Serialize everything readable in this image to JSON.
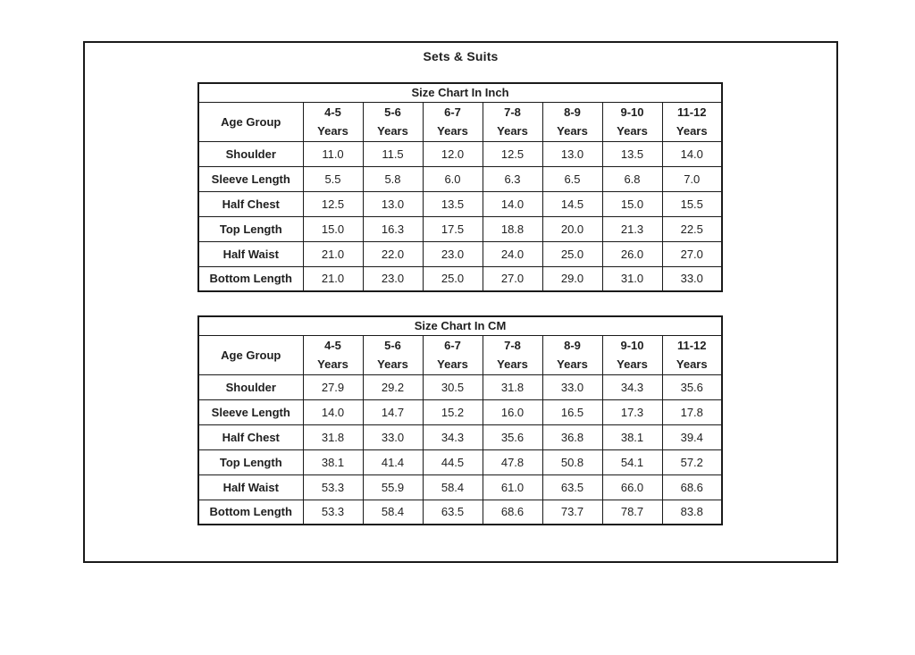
{
  "page": {
    "title": "Sets & Suits"
  },
  "colors": {
    "background": "#ffffff",
    "border": "#1a1a1a",
    "text": "#1f1f1f"
  },
  "tables": [
    {
      "title": "Size Chart In Inch",
      "corner_label": "Age Group",
      "columns": [
        "4-5\nYears",
        "5-6\nYears",
        "6-7\nYears",
        "7-8\nYears",
        "8-9\nYears",
        "9-10\nYears",
        "11-12\nYears"
      ],
      "rows": [
        {
          "label": "Shoulder",
          "values": [
            "11.0",
            "11.5",
            "12.0",
            "12.5",
            "13.0",
            "13.5",
            "14.0"
          ]
        },
        {
          "label": "Sleeve Length",
          "values": [
            "5.5",
            "5.8",
            "6.0",
            "6.3",
            "6.5",
            "6.8",
            "7.0"
          ]
        },
        {
          "label": "Half Chest",
          "values": [
            "12.5",
            "13.0",
            "13.5",
            "14.0",
            "14.5",
            "15.0",
            "15.5"
          ]
        },
        {
          "label": "Top Length",
          "values": [
            "15.0",
            "16.3",
            "17.5",
            "18.8",
            "20.0",
            "21.3",
            "22.5"
          ]
        },
        {
          "label": "Half Waist",
          "values": [
            "21.0",
            "22.0",
            "23.0",
            "24.0",
            "25.0",
            "26.0",
            "27.0"
          ]
        },
        {
          "label": "Bottom Length",
          "values": [
            "21.0",
            "23.0",
            "25.0",
            "27.0",
            "29.0",
            "31.0",
            "33.0"
          ]
        }
      ]
    },
    {
      "title": "Size Chart In CM",
      "corner_label": "Age Group",
      "columns": [
        "4-5\nYears",
        "5-6\nYears",
        "6-7\nYears",
        "7-8\nYears",
        "8-9\nYears",
        "9-10\nYears",
        "11-12\nYears"
      ],
      "rows": [
        {
          "label": "Shoulder",
          "values": [
            "27.9",
            "29.2",
            "30.5",
            "31.8",
            "33.0",
            "34.3",
            "35.6"
          ]
        },
        {
          "label": "Sleeve Length",
          "values": [
            "14.0",
            "14.7",
            "15.2",
            "16.0",
            "16.5",
            "17.3",
            "17.8"
          ]
        },
        {
          "label": "Half Chest",
          "values": [
            "31.8",
            "33.0",
            "34.3",
            "35.6",
            "36.8",
            "38.1",
            "39.4"
          ]
        },
        {
          "label": "Top Length",
          "values": [
            "38.1",
            "41.4",
            "44.5",
            "47.8",
            "50.8",
            "54.1",
            "57.2"
          ]
        },
        {
          "label": "Half Waist",
          "values": [
            "53.3",
            "55.9",
            "58.4",
            "61.0",
            "63.5",
            "66.0",
            "68.6"
          ]
        },
        {
          "label": "Bottom Length",
          "values": [
            "53.3",
            "58.4",
            "63.5",
            "68.6",
            "73.7",
            "78.7",
            "83.8"
          ]
        }
      ]
    }
  ]
}
